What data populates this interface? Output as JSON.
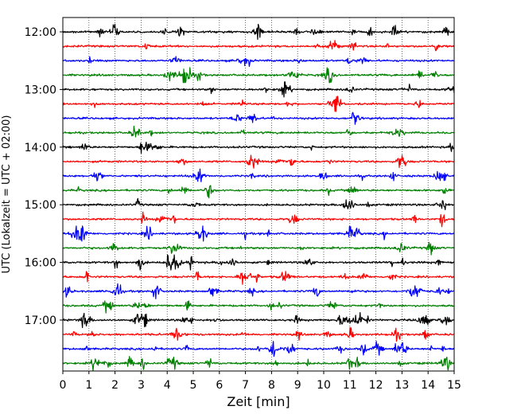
{
  "chart_data": {
    "type": "line",
    "subtype": "helicorder-seismogram",
    "xlabel": "Zeit  [min]",
    "ylabel": "UTC (Lokalzeit = UTC + 02:00)",
    "xlim": [
      0,
      15
    ],
    "x_ticks": [
      0,
      1,
      2,
      3,
      4,
      5,
      6,
      7,
      8,
      9,
      10,
      11,
      12,
      13,
      14,
      15
    ],
    "y_tick_labels": [
      "12:00",
      "13:00",
      "14:00",
      "15:00",
      "16:00",
      "17:00"
    ],
    "y_tick_rows": [
      0,
      4,
      8,
      12,
      16,
      20
    ],
    "grid": "vertical-dotted",
    "trace_colors": [
      "#000000",
      "#ff0000",
      "#0000ff",
      "#008000"
    ],
    "traces": [
      {
        "start": "12:00",
        "color": "#000000"
      },
      {
        "start": "12:15",
        "color": "#ff0000"
      },
      {
        "start": "12:30",
        "color": "#0000ff"
      },
      {
        "start": "12:45",
        "color": "#008000"
      },
      {
        "start": "13:00",
        "color": "#000000"
      },
      {
        "start": "13:15",
        "color": "#ff0000"
      },
      {
        "start": "13:30",
        "color": "#0000ff"
      },
      {
        "start": "13:45",
        "color": "#008000"
      },
      {
        "start": "14:00",
        "color": "#000000"
      },
      {
        "start": "14:15",
        "color": "#ff0000"
      },
      {
        "start": "14:30",
        "color": "#0000ff"
      },
      {
        "start": "14:45",
        "color": "#008000"
      },
      {
        "start": "15:00",
        "color": "#000000"
      },
      {
        "start": "15:15",
        "color": "#ff0000"
      },
      {
        "start": "15:30",
        "color": "#0000ff"
      },
      {
        "start": "15:45",
        "color": "#008000"
      },
      {
        "start": "16:00",
        "color": "#000000"
      },
      {
        "start": "16:15",
        "color": "#ff0000"
      },
      {
        "start": "16:30",
        "color": "#0000ff"
      },
      {
        "start": "16:45",
        "color": "#008000"
      },
      {
        "start": "17:00",
        "color": "#000000"
      },
      {
        "start": "17:15",
        "color": "#ff0000"
      },
      {
        "start": "17:30",
        "color": "#0000ff"
      },
      {
        "start": "17:45",
        "color": "#008000"
      }
    ]
  }
}
